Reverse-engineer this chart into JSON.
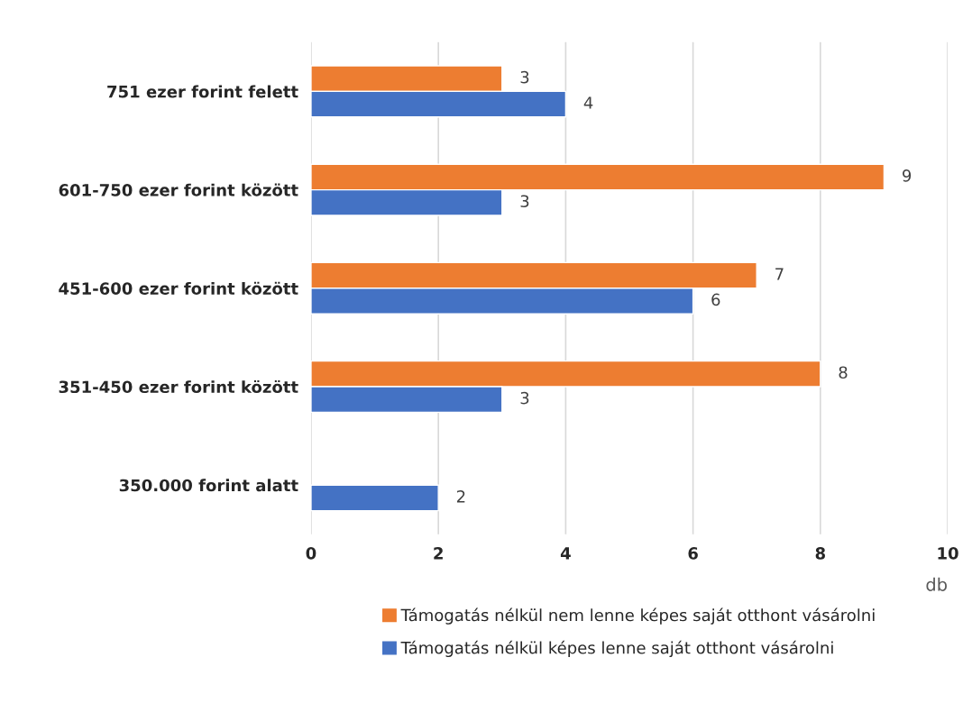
{
  "chart_data": {
    "type": "bar",
    "orientation": "horizontal",
    "categories": [
      "751 ezer forint felett",
      "601-750 ezer forint között",
      "451-600 ezer forint között",
      "351-450 ezer forint között",
      "350.000 forint alatt"
    ],
    "series": [
      {
        "name": "Támogatás nélkül nem lenne képes saját otthont vásárolni",
        "color": "#ed7d31",
        "values": [
          3,
          9,
          7,
          8,
          null
        ]
      },
      {
        "name": "Támogatás nélkül képes lenne saját otthont vásárolni",
        "color": "#4472c4",
        "values": [
          4,
          3,
          6,
          3,
          2
        ]
      }
    ],
    "xlim": [
      0,
      10
    ],
    "xticks": [
      0,
      2,
      4,
      6,
      8,
      10
    ],
    "xlabel": "db",
    "grid": "x",
    "legend": "bottom",
    "data_labels": true
  }
}
